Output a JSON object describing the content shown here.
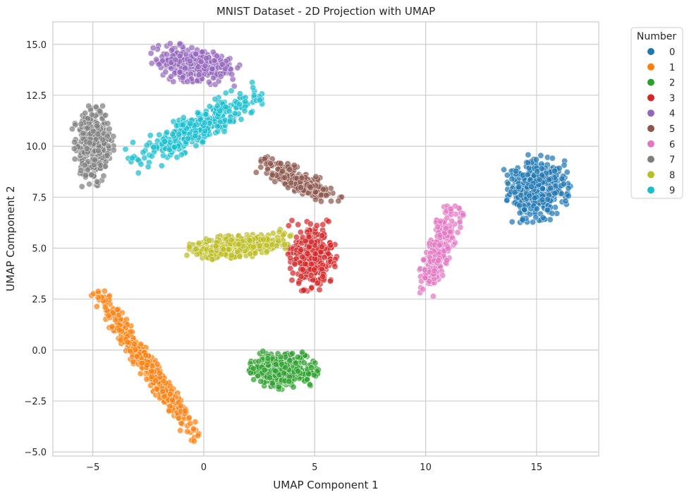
{
  "chart_data": {
    "type": "scatter",
    "title": "MNIST Dataset - 2D Projection with UMAP",
    "xlabel": "UMAP Component 1",
    "ylabel": "UMAP Component 2",
    "xlim": [
      -6.8,
      17.8
    ],
    "ylim": [
      -5.2,
      16.1
    ],
    "xticks": [
      -5,
      0,
      5,
      10,
      15
    ],
    "yticks": [
      -5.0,
      -2.5,
      0.0,
      2.5,
      5.0,
      7.5,
      10.0,
      12.5,
      15.0
    ],
    "xtick_labels": [
      "−5",
      "0",
      "5",
      "10",
      "15"
    ],
    "ytick_labels": [
      "−5.0",
      "−2.5",
      "0.0",
      "2.5",
      "5.0",
      "7.5",
      "10.0",
      "12.5",
      "15.0"
    ],
    "grid": true,
    "legend": {
      "title": "Number",
      "placement": "outside-top-right"
    },
    "series": [
      {
        "name": "0",
        "color": "#1f77b4",
        "clusters": [
          {
            "cx": 15.0,
            "cy": 7.9,
            "rx": 1.45,
            "ry": 1.6,
            "angle": 0,
            "n": 420
          }
        ]
      },
      {
        "name": "1",
        "color": "#ff7f0e",
        "clusters": [
          {
            "cx": -2.6,
            "cy": -0.7,
            "rx": 4.2,
            "ry": 0.45,
            "angle": -58,
            "n": 520
          }
        ]
      },
      {
        "name": "2",
        "color": "#2ca02c",
        "clusters": [
          {
            "cx": 3.6,
            "cy": -1.0,
            "rx": 1.5,
            "ry": 0.9,
            "angle": 0,
            "n": 380
          }
        ]
      },
      {
        "name": "3",
        "color": "#d62728",
        "clusters": [
          {
            "cx": 4.9,
            "cy": 4.6,
            "rx": 1.1,
            "ry": 1.7,
            "angle": 0,
            "n": 340
          }
        ]
      },
      {
        "name": "4",
        "color": "#9467bd",
        "clusters": [
          {
            "cx": -0.5,
            "cy": 14.0,
            "rx": 2.0,
            "ry": 0.9,
            "angle": -8,
            "n": 360
          }
        ]
      },
      {
        "name": "5",
        "color": "#8c564b",
        "clusters": [
          {
            "cx": 4.3,
            "cy": 8.3,
            "rx": 2.0,
            "ry": 0.55,
            "angle": -28,
            "n": 300
          }
        ]
      },
      {
        "name": "6",
        "color": "#e377c2",
        "clusters": [
          {
            "cx": 10.6,
            "cy": 4.9,
            "rx": 2.2,
            "ry": 0.55,
            "angle": 72,
            "n": 320
          }
        ]
      },
      {
        "name": "7",
        "color": "#7f7f7f",
        "clusters": [
          {
            "cx": -5.0,
            "cy": 10.0,
            "rx": 0.9,
            "ry": 1.9,
            "angle": 0,
            "n": 360
          }
        ]
      },
      {
        "name": "8",
        "color": "#bcbd22",
        "clusters": [
          {
            "cx": 1.6,
            "cy": 5.1,
            "rx": 2.3,
            "ry": 0.6,
            "angle": 8,
            "n": 360
          }
        ]
      },
      {
        "name": "9",
        "color": "#17becf",
        "clusters": [
          {
            "cx": -0.3,
            "cy": 10.9,
            "rx": 3.4,
            "ry": 0.8,
            "angle": 30,
            "n": 400
          }
        ]
      }
    ]
  }
}
